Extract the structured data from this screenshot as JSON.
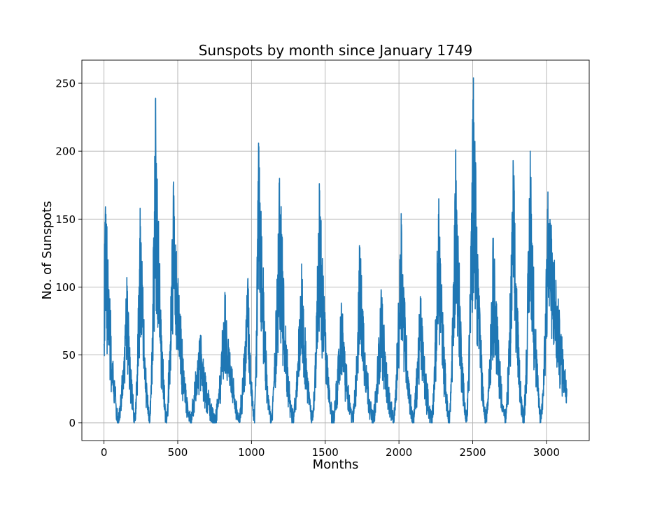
{
  "chart_data": {
    "type": "line",
    "title": "Sunspots by month since January 1749",
    "xlabel": "Months",
    "ylabel": "No. of Sunspots",
    "xlim": [
      -150,
      3290
    ],
    "ylim": [
      -13,
      267
    ],
    "xticks": [
      0,
      500,
      1000,
      1500,
      2000,
      2500,
      3000
    ],
    "yticks": [
      0,
      50,
      100,
      150,
      200,
      250
    ],
    "xtick_labels": [
      "0",
      "500",
      "1000",
      "1500",
      "2000",
      "2500",
      "3000"
    ],
    "ytick_labels": [
      "0",
      "50",
      "100",
      "150",
      "200",
      "250"
    ],
    "grid": true,
    "series_color": "#1f77b4",
    "series": [
      {
        "n_points": 3139,
        "cycle_peaks_approx": [
          {
            "x": 10,
            "y": 159
          },
          {
            "x": 155,
            "y": 107
          },
          {
            "x": 245,
            "y": 158
          },
          {
            "x": 350,
            "y": 239
          },
          {
            "x": 470,
            "y": 174
          },
          {
            "x": 650,
            "y": 62
          },
          {
            "x": 820,
            "y": 96
          },
          {
            "x": 975,
            "y": 106
          },
          {
            "x": 1048,
            "y": 206
          },
          {
            "x": 1190,
            "y": 180
          },
          {
            "x": 1340,
            "y": 117
          },
          {
            "x": 1460,
            "y": 176
          },
          {
            "x": 1610,
            "y": 86
          },
          {
            "x": 1735,
            "y": 129
          },
          {
            "x": 1880,
            "y": 97
          },
          {
            "x": 2015,
            "y": 154
          },
          {
            "x": 2145,
            "y": 93
          },
          {
            "x": 2270,
            "y": 165
          },
          {
            "x": 2385,
            "y": 201
          },
          {
            "x": 2505,
            "y": 254
          },
          {
            "x": 2640,
            "y": 136
          },
          {
            "x": 2775,
            "y": 188
          },
          {
            "x": 2890,
            "y": 200
          },
          {
            "x": 3010,
            "y": 170
          }
        ]
      }
    ]
  }
}
